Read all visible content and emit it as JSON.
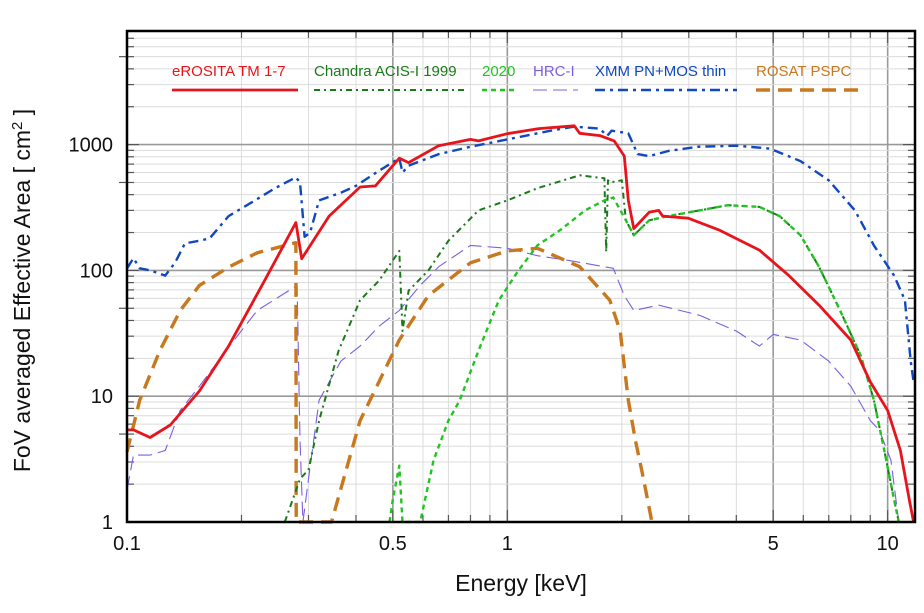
{
  "chart_data": {
    "type": "line",
    "title": "",
    "xlabel": "Energy  [keV]",
    "ylabel": "FoV averaged Effective Area  [ cm",
    "ylabel_superscript": "2",
    "ylabel_suffix": " ]",
    "xscale": "log",
    "yscale": "log",
    "xlim": [
      0.1,
      11.8
    ],
    "ylim": [
      1,
      8000
    ],
    "grid": true,
    "legend_position": "top",
    "x_ticks": [
      {
        "value": 0.1,
        "label": "0.1"
      },
      {
        "value": 0.5,
        "label": "0.5"
      },
      {
        "value": 1,
        "label": "1"
      },
      {
        "value": 5,
        "label": "5"
      },
      {
        "value": 10,
        "label": "10"
      }
    ],
    "y_ticks": [
      {
        "value": 1,
        "label": "1"
      },
      {
        "value": 10,
        "label": "10"
      },
      {
        "value": 100,
        "label": "100"
      },
      {
        "value": 1000,
        "label": "1000"
      }
    ],
    "series": [
      {
        "name": "eROSITA TM 1-7",
        "color": "#e8141c",
        "style": "solid",
        "x": [
          0.1,
          0.104,
          0.115,
          0.13,
          0.155,
          0.185,
          0.23,
          0.278,
          0.288,
          0.34,
          0.41,
          0.45,
          0.52,
          0.55,
          0.66,
          0.8,
          0.84,
          1.0,
          1.21,
          1.5,
          1.55,
          1.75,
          1.91,
          2.03,
          2.08,
          2.15,
          2.36,
          2.5,
          2.56,
          2.99,
          3.6,
          4.6,
          5.5,
          6.6,
          8.0,
          9.0,
          10.0,
          10.8,
          11.4,
          11.7
        ],
        "y": [
          5.4,
          5.4,
          4.7,
          5.9,
          11,
          25,
          83,
          240,
          124,
          270,
          460,
          470,
          780,
          720,
          980,
          1100,
          1070,
          1220,
          1340,
          1410,
          1230,
          1180,
          1070,
          810,
          360,
          215,
          290,
          300,
          270,
          260,
          210,
          145,
          91,
          53,
          28,
          13,
          7.7,
          3.7,
          1.5,
          1
        ]
      },
      {
        "name": "Chandra ACIS-I 1999",
        "color": "#1a7a1a",
        "style": "dash-dot-dot",
        "x": [
          0.26,
          0.285,
          0.3,
          0.32,
          0.36,
          0.41,
          0.46,
          0.5,
          0.52,
          0.53,
          0.55,
          0.62,
          0.7,
          0.84,
          1.0,
          1.2,
          1.55,
          1.8,
          1.82,
          1.84,
          1.86,
          2.0,
          2.05,
          2.15,
          2.36,
          2.65,
          3.2,
          3.8,
          4.6,
          5.2,
          5.9,
          6.6,
          7.5,
          8.5,
          9.2,
          9.8,
          10.4,
          10.7
        ],
        "y": [
          1,
          2.2,
          2.6,
          6.4,
          23,
          58,
          83,
          120,
          143,
          33,
          69,
          100,
          172,
          300,
          360,
          450,
          570,
          540,
          140,
          520,
          500,
          520,
          250,
          190,
          250,
          270,
          300,
          330,
          320,
          270,
          190,
          107,
          48,
          21,
          9.3,
          3.7,
          1.5,
          1
        ]
      },
      {
        "name": "2020",
        "color": "#22c422",
        "style": "dashed",
        "x": [
          0.49,
          0.5,
          0.52,
          0.53,
          0.59,
          0.64,
          0.7,
          0.75,
          0.84,
          0.95,
          1.07,
          1.2,
          1.38,
          1.6,
          1.8,
          1.9,
          2.05,
          2.15,
          2.36,
          2.65,
          3.2,
          3.8,
          4.6,
          5.2,
          5.9,
          6.6,
          7.5,
          8.5,
          9.2,
          9.8,
          10.4,
          10.7
        ],
        "y": [
          1,
          1.5,
          2.8,
          1,
          1,
          3.1,
          6.4,
          9.3,
          23,
          58,
          100,
          158,
          210,
          300,
          360,
          380,
          250,
          190,
          250,
          270,
          300,
          330,
          320,
          270,
          190,
          107,
          48,
          21,
          9.3,
          3.7,
          1.5,
          1
        ]
      },
      {
        "name": "HRC-I",
        "color": "#7b5fe0",
        "style": "long-dash",
        "x": [
          0.1,
          0.104,
          0.115,
          0.126,
          0.138,
          0.155,
          0.186,
          0.22,
          0.28,
          0.285,
          0.29,
          0.3,
          0.32,
          0.365,
          0.41,
          0.46,
          0.52,
          0.59,
          0.66,
          0.8,
          1.0,
          1.2,
          1.45,
          1.9,
          2.03,
          2.15,
          2.5,
          3.2,
          4.0,
          4.6,
          5.0,
          5.9,
          7.0,
          8.0,
          9.0,
          9.5,
          10.2,
          10.7
        ],
        "y": [
          1.8,
          3.4,
          3.4,
          3.7,
          7.7,
          12,
          25,
          48,
          76,
          4.5,
          1,
          2.2,
          9.3,
          19,
          25,
          36,
          48,
          76,
          107,
          158,
          150,
          131,
          120,
          104,
          63,
          48,
          53,
          44,
          33,
          25,
          31,
          28,
          19,
          12,
          6.4,
          5.4,
          3.1,
          1
        ]
      },
      {
        "name": "XMM PN+MOS thin",
        "color": "#1048c0",
        "style": "dash-dot",
        "x": [
          0.1,
          0.104,
          0.108,
          0.115,
          0.126,
          0.134,
          0.142,
          0.155,
          0.165,
          0.185,
          0.217,
          0.245,
          0.278,
          0.285,
          0.293,
          0.303,
          0.32,
          0.365,
          0.4,
          0.46,
          0.52,
          0.53,
          0.55,
          0.66,
          0.8,
          1.0,
          1.3,
          1.5,
          1.75,
          1.83,
          1.88,
          2.08,
          2.2,
          2.36,
          2.65,
          3.17,
          4.0,
          4.9,
          5.9,
          7.0,
          8.2,
          9.2,
          10.4,
          11.1,
          11.5,
          11.7
        ],
        "y": [
          104,
          125,
          104,
          100,
          91,
          116,
          164,
          172,
          180,
          270,
          360,
          450,
          550,
          500,
          185,
          200,
          360,
          415,
          470,
          620,
          780,
          600,
          680,
          840,
          960,
          1100,
          1290,
          1390,
          1340,
          1170,
          1290,
          1230,
          840,
          810,
          890,
          960,
          980,
          930,
          740,
          520,
          300,
          158,
          91,
          58,
          19,
          13
        ]
      },
      {
        "name": "ROSAT PSPC",
        "color": "#c8781e",
        "style": "heavy-dash",
        "x": [
          0.1,
          0.108,
          0.122,
          0.138,
          0.155,
          0.186,
          0.22,
          0.278,
          0.2785,
          0.345,
          0.41,
          0.52,
          0.62,
          0.8,
          1.0,
          1.2,
          1.55,
          1.86,
          1.98,
          2.08,
          2.17,
          2.28,
          2.4
        ],
        "y": [
          3.6,
          9.3,
          23,
          48,
          76,
          107,
          138,
          166,
          1,
          1,
          6.4,
          28,
          63,
          115,
          143,
          150,
          107,
          58,
          33,
          9.3,
          4.5,
          2.2,
          1
        ]
      }
    ]
  }
}
